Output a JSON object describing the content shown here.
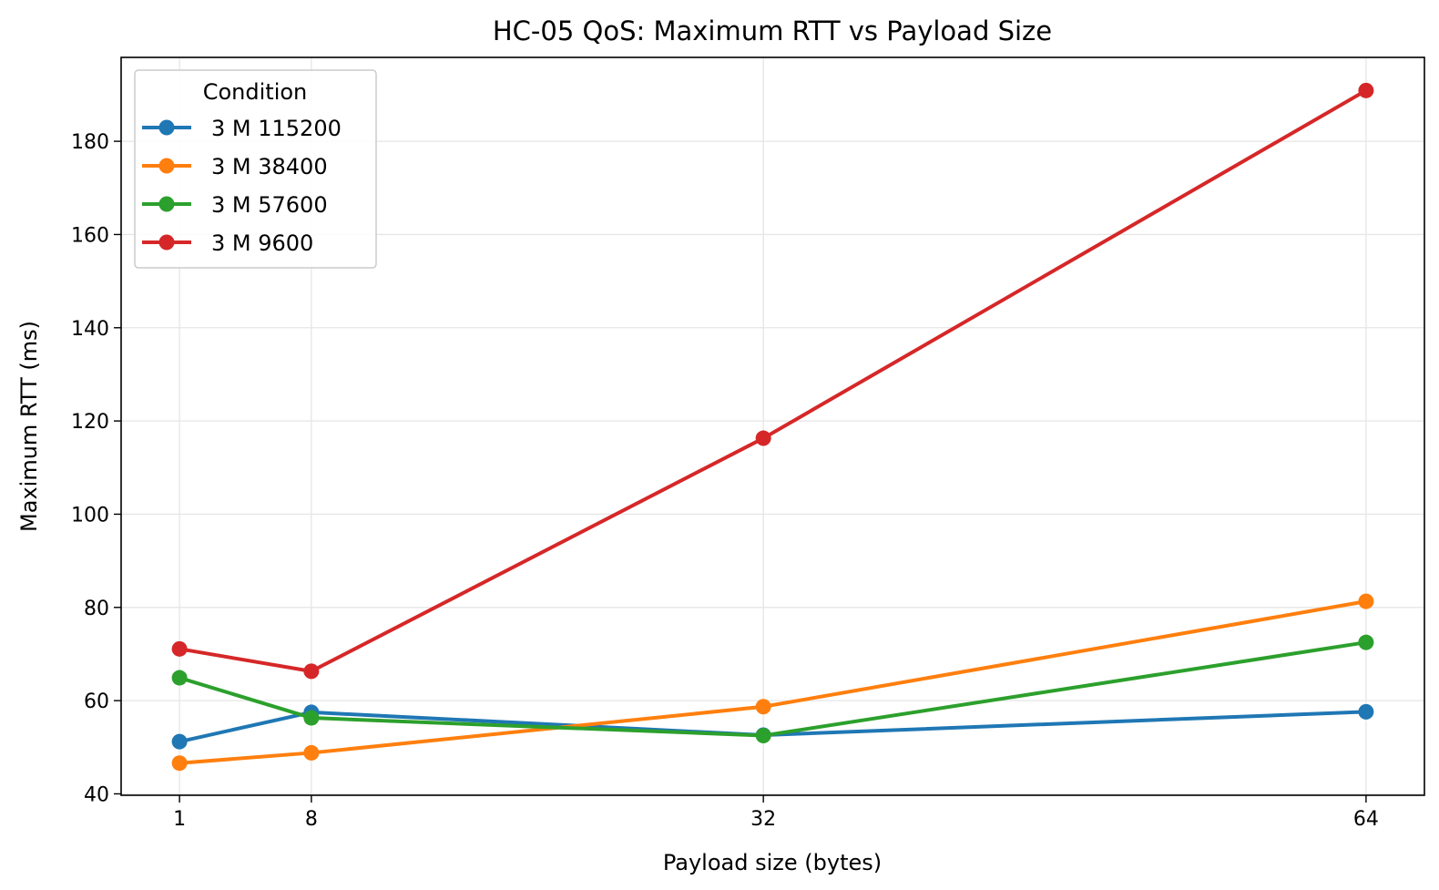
{
  "chart_data": {
    "type": "line",
    "title": "HC-05 QoS: Maximum RTT vs Payload Size",
    "xlabel": "Payload size (bytes)",
    "ylabel": "Maximum RTT (ms)",
    "x": [
      1,
      8,
      32,
      64
    ],
    "xticks": [
      "1",
      "8",
      "32",
      "64"
    ],
    "yticks": [
      "40",
      "60",
      "80",
      "100",
      "120",
      "140",
      "160",
      "180"
    ],
    "ytick_values": [
      40,
      60,
      80,
      100,
      120,
      140,
      160,
      180
    ],
    "xlim": [
      -2.1,
      67.1
    ],
    "ylim": [
      39.7,
      198.0
    ],
    "grid": true,
    "legend": {
      "title": "Condition",
      "placement": "top-left"
    },
    "series": [
      {
        "name": "3 M 115200",
        "color": "#1f77b4",
        "values": [
          51.2,
          57.5,
          52.6,
          57.6
        ]
      },
      {
        "name": "3 M 38400",
        "color": "#ff7f0e",
        "values": [
          46.6,
          48.8,
          58.7,
          81.3
        ]
      },
      {
        "name": "3 M 57600",
        "color": "#2ca02c",
        "values": [
          64.9,
          56.3,
          52.5,
          72.5
        ]
      },
      {
        "name": "3 M 9600",
        "color": "#d62728",
        "values": [
          71.1,
          66.3,
          116.3,
          190.9
        ]
      }
    ]
  }
}
